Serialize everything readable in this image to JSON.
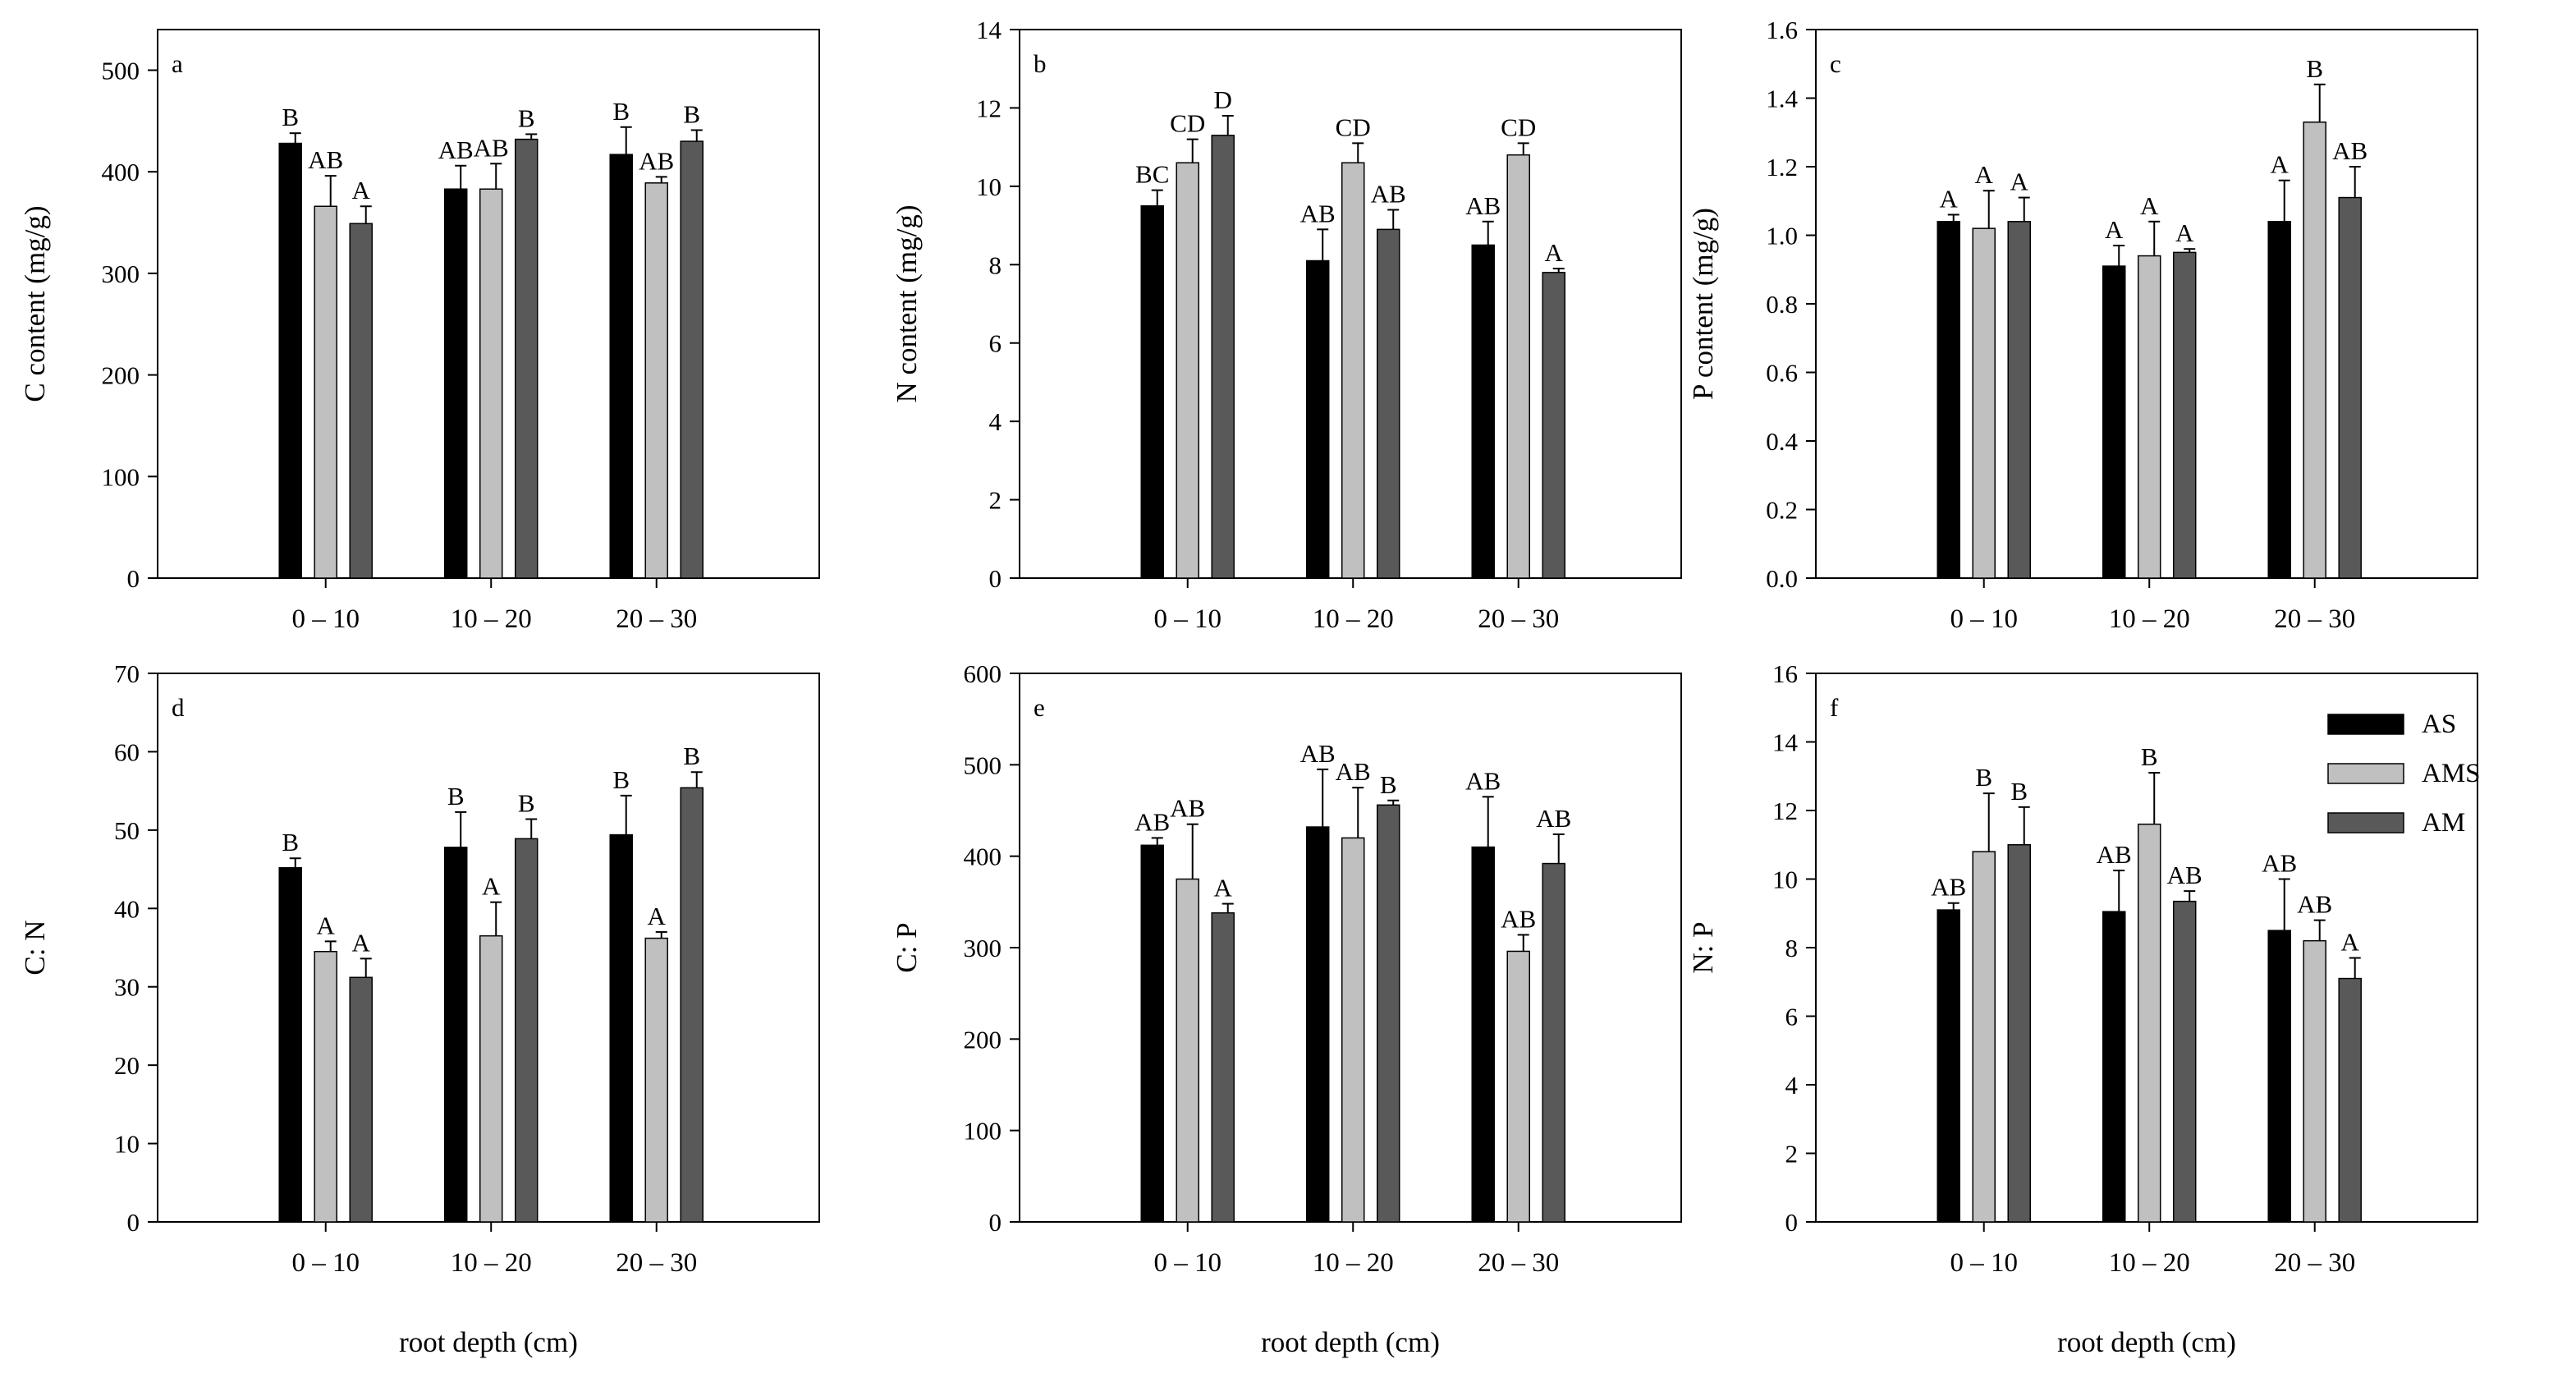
{
  "figure": {
    "xlabel": "root depth (cm)",
    "legend": {
      "entries": [
        {
          "name": "AS",
          "color": "#000000"
        },
        {
          "name": "AMS",
          "color": "#c0c0c0"
        },
        {
          "name": "AM",
          "color": "#595959"
        }
      ]
    }
  },
  "chart_data": [
    {
      "panel": "a",
      "type": "bar",
      "ylabel": "C content (mg/g)",
      "categories": [
        "0 – 10",
        "10 – 20",
        "20 – 30"
      ],
      "ylim": [
        0,
        540
      ],
      "yticks": [
        0,
        100,
        200,
        300,
        400,
        500
      ],
      "series": [
        {
          "name": "AS",
          "values": [
            428,
            383,
            417
          ],
          "errors": [
            10,
            23,
            27
          ],
          "letters": [
            "B",
            "AB",
            "B"
          ]
        },
        {
          "name": "AMS",
          "values": [
            366,
            383,
            389
          ],
          "errors": [
            30,
            25,
            6
          ],
          "letters": [
            "AB",
            "AB",
            "AB"
          ]
        },
        {
          "name": "AM",
          "values": [
            349,
            432,
            430
          ],
          "errors": [
            17,
            5,
            11
          ],
          "letters": [
            "A",
            "B",
            "B"
          ]
        }
      ]
    },
    {
      "panel": "b",
      "type": "bar",
      "ylabel": "N content (mg/g)",
      "categories": [
        "0 – 10",
        "10 – 20",
        "20 – 30"
      ],
      "ylim": [
        0,
        14
      ],
      "yticks": [
        0,
        2,
        4,
        6,
        8,
        10,
        12,
        14
      ],
      "series": [
        {
          "name": "AS",
          "values": [
            9.5,
            8.1,
            8.5
          ],
          "errors": [
            0.4,
            0.8,
            0.6
          ],
          "letters": [
            "BC",
            "AB",
            "AB"
          ]
        },
        {
          "name": "AMS",
          "values": [
            10.6,
            10.6,
            10.8
          ],
          "errors": [
            0.6,
            0.5,
            0.3
          ],
          "letters": [
            "CD",
            "CD",
            "CD"
          ]
        },
        {
          "name": "AM",
          "values": [
            11.3,
            8.9,
            7.8
          ],
          "errors": [
            0.5,
            0.5,
            0.1
          ],
          "letters": [
            "D",
            "AB",
            "A"
          ]
        }
      ]
    },
    {
      "panel": "c",
      "type": "bar",
      "ylabel": "P content (mg/g)",
      "categories": [
        "0 – 10",
        "10 – 20",
        "20 – 30"
      ],
      "ylim": [
        0,
        1.6
      ],
      "yticks": [
        0.0,
        0.2,
        0.4,
        0.6,
        0.8,
        1.0,
        1.2,
        1.4,
        1.6
      ],
      "series": [
        {
          "name": "AS",
          "values": [
            1.04,
            0.91,
            1.04
          ],
          "errors": [
            0.02,
            0.06,
            0.12
          ],
          "letters": [
            "A",
            "A",
            "A"
          ]
        },
        {
          "name": "AMS",
          "values": [
            1.02,
            0.94,
            1.33
          ],
          "errors": [
            0.11,
            0.1,
            0.11
          ],
          "letters": [
            "A",
            "A",
            "B"
          ]
        },
        {
          "name": "AM",
          "values": [
            1.04,
            0.95,
            1.11
          ],
          "errors": [
            0.07,
            0.01,
            0.09
          ],
          "letters": [
            "A",
            "A",
            "AB"
          ]
        }
      ]
    },
    {
      "panel": "d",
      "type": "bar",
      "ylabel": "C: N",
      "categories": [
        "0 – 10",
        "10 – 20",
        "20 – 30"
      ],
      "ylim": [
        0,
        70
      ],
      "yticks": [
        0,
        10,
        20,
        30,
        40,
        50,
        60,
        70
      ],
      "series": [
        {
          "name": "AS",
          "values": [
            45.2,
            47.8,
            49.4
          ],
          "errors": [
            1.2,
            4.5,
            5.0
          ],
          "letters": [
            "B",
            "B",
            "B"
          ]
        },
        {
          "name": "AMS",
          "values": [
            34.5,
            36.5,
            36.2
          ],
          "errors": [
            1.3,
            4.3,
            0.8
          ],
          "letters": [
            "A",
            "A",
            "A"
          ]
        },
        {
          "name": "AM",
          "values": [
            31.2,
            48.9,
            55.4
          ],
          "errors": [
            2.4,
            2.5,
            2.0
          ],
          "letters": [
            "A",
            "B",
            "B"
          ]
        }
      ]
    },
    {
      "panel": "e",
      "type": "bar",
      "ylabel": "C: P",
      "categories": [
        "0 – 10",
        "10 – 20",
        "20 – 30"
      ],
      "ylim": [
        0,
        600
      ],
      "yticks": [
        0,
        100,
        200,
        300,
        400,
        500,
        600
      ],
      "series": [
        {
          "name": "AS",
          "values": [
            412,
            432,
            410
          ],
          "errors": [
            8,
            63,
            55
          ],
          "letters": [
            "AB",
            "AB",
            "AB"
          ]
        },
        {
          "name": "AMS",
          "values": [
            375,
            420,
            296
          ],
          "errors": [
            60,
            55,
            18
          ],
          "letters": [
            "AB",
            "AB",
            "AB"
          ]
        },
        {
          "name": "AM",
          "values": [
            338,
            456,
            392
          ],
          "errors": [
            10,
            5,
            32
          ],
          "letters": [
            "A",
            "B",
            "AB"
          ]
        }
      ]
    },
    {
      "panel": "f",
      "type": "bar",
      "ylabel": "N: P",
      "categories": [
        "0 – 10",
        "10 – 20",
        "20 – 30"
      ],
      "ylim": [
        0,
        16
      ],
      "yticks": [
        0,
        2,
        4,
        6,
        8,
        10,
        12,
        14,
        16
      ],
      "series": [
        {
          "name": "AS",
          "values": [
            9.1,
            9.05,
            8.5
          ],
          "errors": [
            0.2,
            1.2,
            1.5
          ],
          "letters": [
            "AB",
            "AB",
            "AB"
          ]
        },
        {
          "name": "AMS",
          "values": [
            10.8,
            11.6,
            8.2
          ],
          "errors": [
            1.7,
            1.5,
            0.6
          ],
          "letters": [
            "B",
            "B",
            "AB"
          ]
        },
        {
          "name": "AM",
          "values": [
            11.0,
            9.35,
            7.1
          ],
          "errors": [
            1.1,
            0.3,
            0.6
          ],
          "letters": [
            "B",
            "AB",
            "A"
          ]
        }
      ]
    }
  ]
}
